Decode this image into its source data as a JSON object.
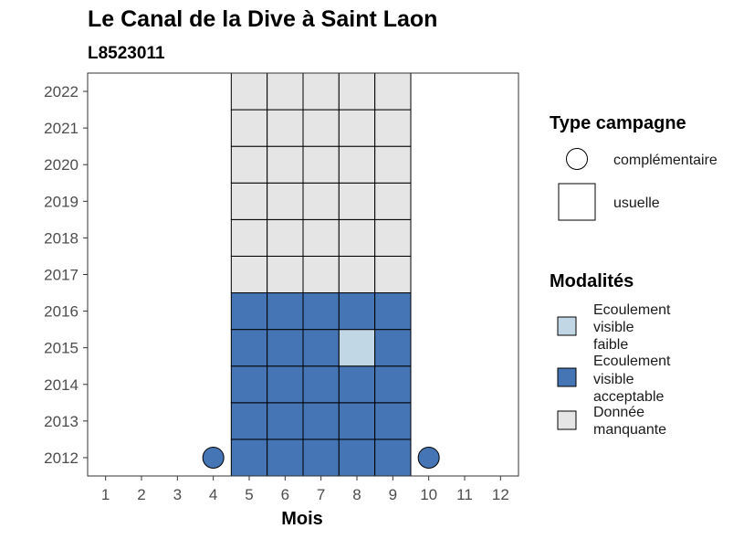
{
  "chart_data": {
    "type": "heatmap",
    "title": "Le Canal de la Dive à Saint Laon",
    "subtitle": "L8523011",
    "xlabel": "Mois",
    "ylabel": "",
    "x_ticks": [
      "1",
      "2",
      "3",
      "4",
      "5",
      "6",
      "7",
      "8",
      "9",
      "10",
      "11",
      "12"
    ],
    "y_ticks": [
      "2012",
      "2013",
      "2014",
      "2015",
      "2016",
      "2017",
      "2018",
      "2019",
      "2020",
      "2021",
      "2022"
    ],
    "colors": {
      "Ecoulement visible faible": "#c2d7e6",
      "Ecoulement visible acceptable": "#4575b4",
      "Donnée manquante": "#e5e5e5"
    },
    "cells": [
      {
        "month": 5,
        "year": 2012,
        "campagne": "usuelle",
        "modalite": "Ecoulement visible acceptable"
      },
      {
        "month": 6,
        "year": 2012,
        "campagne": "usuelle",
        "modalite": "Ecoulement visible acceptable"
      },
      {
        "month": 7,
        "year": 2012,
        "campagne": "usuelle",
        "modalite": "Ecoulement visible acceptable"
      },
      {
        "month": 8,
        "year": 2012,
        "campagne": "usuelle",
        "modalite": "Ecoulement visible acceptable"
      },
      {
        "month": 9,
        "year": 2012,
        "campagne": "usuelle",
        "modalite": "Ecoulement visible acceptable"
      },
      {
        "month": 5,
        "year": 2013,
        "campagne": "usuelle",
        "modalite": "Ecoulement visible acceptable"
      },
      {
        "month": 6,
        "year": 2013,
        "campagne": "usuelle",
        "modalite": "Ecoulement visible acceptable"
      },
      {
        "month": 7,
        "year": 2013,
        "campagne": "usuelle",
        "modalite": "Ecoulement visible acceptable"
      },
      {
        "month": 8,
        "year": 2013,
        "campagne": "usuelle",
        "modalite": "Ecoulement visible acceptable"
      },
      {
        "month": 9,
        "year": 2013,
        "campagne": "usuelle",
        "modalite": "Ecoulement visible acceptable"
      },
      {
        "month": 5,
        "year": 2014,
        "campagne": "usuelle",
        "modalite": "Ecoulement visible acceptable"
      },
      {
        "month": 6,
        "year": 2014,
        "campagne": "usuelle",
        "modalite": "Ecoulement visible acceptable"
      },
      {
        "month": 7,
        "year": 2014,
        "campagne": "usuelle",
        "modalite": "Ecoulement visible acceptable"
      },
      {
        "month": 8,
        "year": 2014,
        "campagne": "usuelle",
        "modalite": "Ecoulement visible acceptable"
      },
      {
        "month": 9,
        "year": 2014,
        "campagne": "usuelle",
        "modalite": "Ecoulement visible acceptable"
      },
      {
        "month": 5,
        "year": 2015,
        "campagne": "usuelle",
        "modalite": "Ecoulement visible acceptable"
      },
      {
        "month": 6,
        "year": 2015,
        "campagne": "usuelle",
        "modalite": "Ecoulement visible acceptable"
      },
      {
        "month": 7,
        "year": 2015,
        "campagne": "usuelle",
        "modalite": "Ecoulement visible acceptable"
      },
      {
        "month": 8,
        "year": 2015,
        "campagne": "usuelle",
        "modalite": "Ecoulement visible faible"
      },
      {
        "month": 9,
        "year": 2015,
        "campagne": "usuelle",
        "modalite": "Ecoulement visible acceptable"
      },
      {
        "month": 5,
        "year": 2016,
        "campagne": "usuelle",
        "modalite": "Ecoulement visible acceptable"
      },
      {
        "month": 6,
        "year": 2016,
        "campagne": "usuelle",
        "modalite": "Ecoulement visible acceptable"
      },
      {
        "month": 7,
        "year": 2016,
        "campagne": "usuelle",
        "modalite": "Ecoulement visible acceptable"
      },
      {
        "month": 8,
        "year": 2016,
        "campagne": "usuelle",
        "modalite": "Ecoulement visible acceptable"
      },
      {
        "month": 9,
        "year": 2016,
        "campagne": "usuelle",
        "modalite": "Ecoulement visible acceptable"
      },
      {
        "month": 5,
        "year": 2017,
        "campagne": "usuelle",
        "modalite": "Donnée manquante"
      },
      {
        "month": 6,
        "year": 2017,
        "campagne": "usuelle",
        "modalite": "Donnée manquante"
      },
      {
        "month": 7,
        "year": 2017,
        "campagne": "usuelle",
        "modalite": "Donnée manquante"
      },
      {
        "month": 8,
        "year": 2017,
        "campagne": "usuelle",
        "modalite": "Donnée manquante"
      },
      {
        "month": 9,
        "year": 2017,
        "campagne": "usuelle",
        "modalite": "Donnée manquante"
      },
      {
        "month": 5,
        "year": 2018,
        "campagne": "usuelle",
        "modalite": "Donnée manquante"
      },
      {
        "month": 6,
        "year": 2018,
        "campagne": "usuelle",
        "modalite": "Donnée manquante"
      },
      {
        "month": 7,
        "year": 2018,
        "campagne": "usuelle",
        "modalite": "Donnée manquante"
      },
      {
        "month": 8,
        "year": 2018,
        "campagne": "usuelle",
        "modalite": "Donnée manquante"
      },
      {
        "month": 9,
        "year": 2018,
        "campagne": "usuelle",
        "modalite": "Donnée manquante"
      },
      {
        "month": 5,
        "year": 2019,
        "campagne": "usuelle",
        "modalite": "Donnée manquante"
      },
      {
        "month": 6,
        "year": 2019,
        "campagne": "usuelle",
        "modalite": "Donnée manquante"
      },
      {
        "month": 7,
        "year": 2019,
        "campagne": "usuelle",
        "modalite": "Donnée manquante"
      },
      {
        "month": 8,
        "year": 2019,
        "campagne": "usuelle",
        "modalite": "Donnée manquante"
      },
      {
        "month": 9,
        "year": 2019,
        "campagne": "usuelle",
        "modalite": "Donnée manquante"
      },
      {
        "month": 5,
        "year": 2020,
        "campagne": "usuelle",
        "modalite": "Donnée manquante"
      },
      {
        "month": 6,
        "year": 2020,
        "campagne": "usuelle",
        "modalite": "Donnée manquante"
      },
      {
        "month": 7,
        "year": 2020,
        "campagne": "usuelle",
        "modalite": "Donnée manquante"
      },
      {
        "month": 8,
        "year": 2020,
        "campagne": "usuelle",
        "modalite": "Donnée manquante"
      },
      {
        "month": 9,
        "year": 2020,
        "campagne": "usuelle",
        "modalite": "Donnée manquante"
      },
      {
        "month": 5,
        "year": 2021,
        "campagne": "usuelle",
        "modalite": "Donnée manquante"
      },
      {
        "month": 6,
        "year": 2021,
        "campagne": "usuelle",
        "modalite": "Donnée manquante"
      },
      {
        "month": 7,
        "year": 2021,
        "campagne": "usuelle",
        "modalite": "Donnée manquante"
      },
      {
        "month": 8,
        "year": 2021,
        "campagne": "usuelle",
        "modalite": "Donnée manquante"
      },
      {
        "month": 9,
        "year": 2021,
        "campagne": "usuelle",
        "modalite": "Donnée manquante"
      },
      {
        "month": 5,
        "year": 2022,
        "campagne": "usuelle",
        "modalite": "Donnée manquante"
      },
      {
        "month": 6,
        "year": 2022,
        "campagne": "usuelle",
        "modalite": "Donnée manquante"
      },
      {
        "month": 7,
        "year": 2022,
        "campagne": "usuelle",
        "modalite": "Donnée manquante"
      },
      {
        "month": 8,
        "year": 2022,
        "campagne": "usuelle",
        "modalite": "Donnée manquante"
      },
      {
        "month": 9,
        "year": 2022,
        "campagne": "usuelle",
        "modalite": "Donnée manquante"
      },
      {
        "month": 4,
        "year": 2012,
        "campagne": "complémentaire",
        "modalite": "Ecoulement visible acceptable"
      },
      {
        "month": 10,
        "year": 2012,
        "campagne": "complémentaire",
        "modalite": "Ecoulement visible acceptable"
      }
    ],
    "legends": {
      "campagne": {
        "title": "Type campagne",
        "items": [
          {
            "label": "complémentaire",
            "shape": "circle"
          },
          {
            "label": "usuelle",
            "shape": "square"
          }
        ]
      },
      "modalites": {
        "title": "Modalités",
        "items": [
          {
            "lines": [
              "Ecoulement",
              "visible",
              "faible"
            ],
            "color": "#c2d7e6"
          },
          {
            "lines": [
              "Ecoulement",
              "visible",
              "acceptable"
            ],
            "color": "#4575b4"
          },
          {
            "lines": [
              "Donnée",
              "manquante"
            ],
            "color": "#e5e5e5"
          }
        ]
      }
    },
    "legend_position": "right",
    "grid": false
  }
}
